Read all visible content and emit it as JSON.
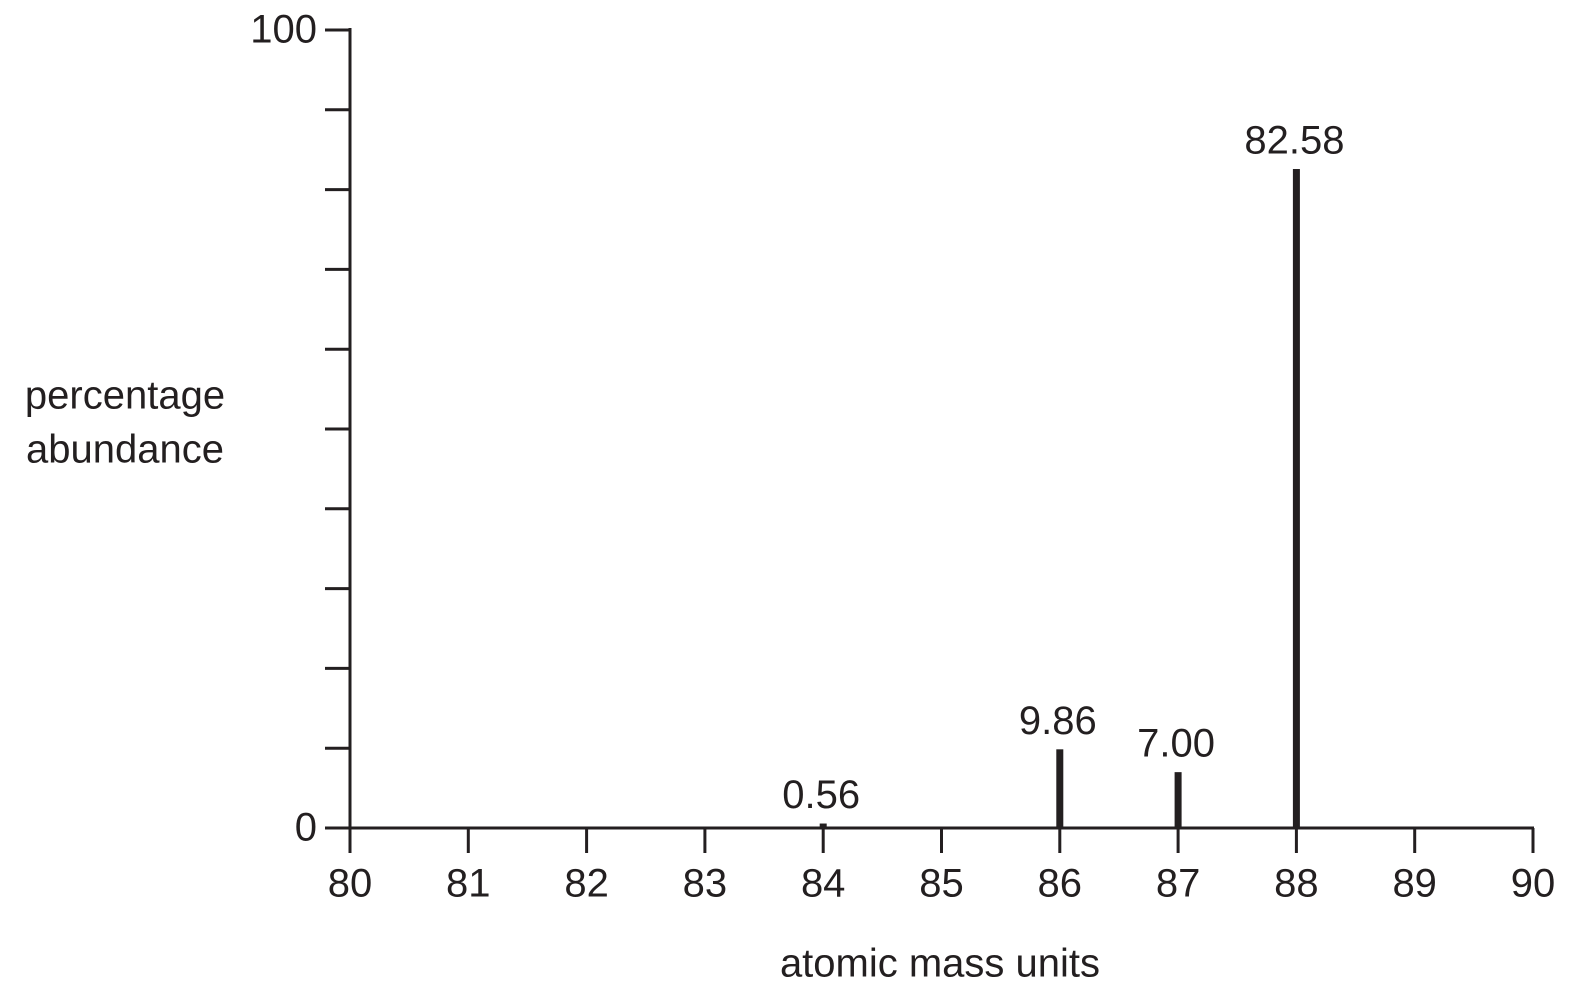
{
  "chart_data": {
    "type": "stem",
    "x": [
      84,
      86,
      87,
      88
    ],
    "values": [
      0.56,
      9.86,
      7.0,
      82.58
    ],
    "value_labels": [
      "0.56",
      "9.86",
      "7.00",
      "82.58"
    ],
    "color": "#231f20",
    "xlim": [
      80,
      90
    ],
    "xticks": [
      80,
      81,
      82,
      83,
      84,
      85,
      86,
      87,
      88,
      89,
      90
    ],
    "ylim": [
      0,
      100
    ],
    "yticks": [
      0,
      100
    ],
    "yminor_ticks": [
      10,
      20,
      30,
      40,
      50,
      60,
      70,
      80,
      90
    ],
    "xlabel": "atomic mass units",
    "ylabel": [
      "percentage",
      "abundance"
    ]
  }
}
